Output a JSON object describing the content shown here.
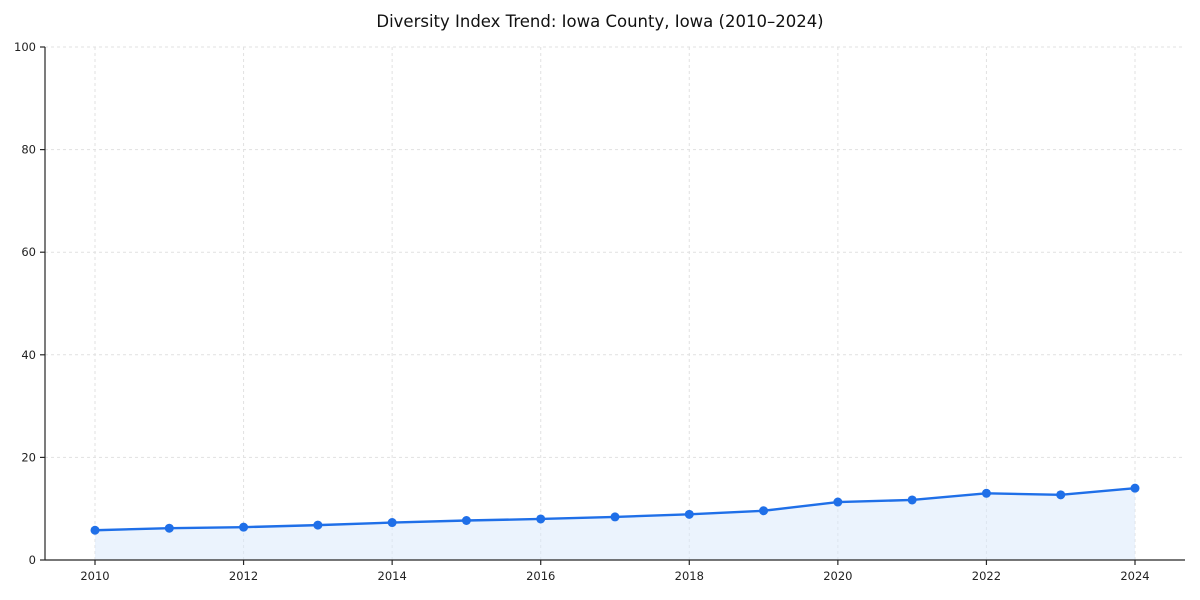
{
  "page": {
    "background_color": "#ffffff"
  },
  "chart_data": {
    "type": "line",
    "title": "Diversity Index Trend: Iowa County, Iowa (2010–2024)",
    "x": [
      2010,
      2011,
      2012,
      2013,
      2014,
      2015,
      2016,
      2017,
      2018,
      2019,
      2020,
      2021,
      2022,
      2023,
      2024
    ],
    "series": [
      {
        "name": "Diversity Index",
        "values": [
          5.8,
          6.2,
          6.4,
          6.8,
          7.3,
          7.7,
          8.0,
          8.4,
          8.9,
          9.6,
          11.3,
          11.7,
          13.0,
          12.7,
          14.0
        ]
      }
    ],
    "xlabel": "",
    "ylabel": "",
    "ylim": [
      0,
      100
    ],
    "yticks": [
      0,
      20,
      40,
      60,
      80,
      100
    ],
    "xticks": [
      2010,
      2012,
      2014,
      2016,
      2018,
      2020,
      2022,
      2024
    ],
    "grid": true,
    "grid_style": "dashed",
    "grid_color": "#e1e1e1",
    "legend_position": "none",
    "line_color": "#1f6fe8",
    "fill_color": "#dbe9fc",
    "fill_opacity": 0.55,
    "marker": "circle",
    "marker_size": 4.5,
    "spine_color": "#262626"
  }
}
